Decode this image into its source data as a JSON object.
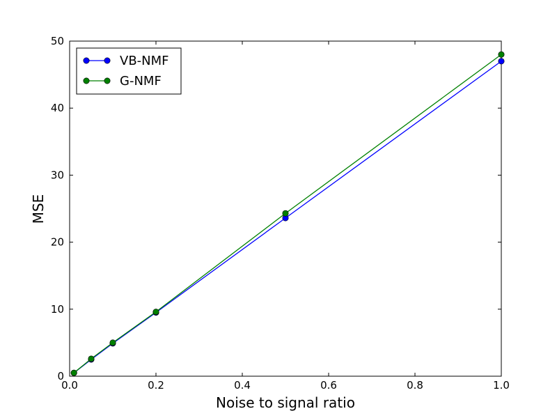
{
  "chart_data": {
    "type": "line",
    "title": "",
    "xlabel": "Noise to signal ratio",
    "ylabel": "MSE",
    "xlim": [
      0.0,
      1.0
    ],
    "ylim": [
      0,
      50
    ],
    "xticks": [
      0.0,
      0.2,
      0.4,
      0.6,
      0.8,
      1.0
    ],
    "xtick_labels": [
      "0.0",
      "0.2",
      "0.4",
      "0.6",
      "0.8",
      "1.0"
    ],
    "yticks": [
      0,
      10,
      20,
      30,
      40,
      50
    ],
    "ytick_labels": [
      "0",
      "10",
      "20",
      "30",
      "40",
      "50"
    ],
    "grid": false,
    "legend": {
      "position": "top-left"
    },
    "series": [
      {
        "name": "VB-NMF",
        "color": "#0000ff",
        "marker": "circle",
        "x": [
          0.01,
          0.05,
          0.1,
          0.2,
          0.5,
          1.0
        ],
        "y": [
          0.5,
          2.5,
          4.9,
          9.5,
          23.6,
          47.0
        ]
      },
      {
        "name": "G-NMF",
        "color": "#008000",
        "marker": "circle",
        "x": [
          0.01,
          0.05,
          0.1,
          0.2,
          0.5,
          1.0
        ],
        "y": [
          0.5,
          2.6,
          5.0,
          9.6,
          24.3,
          48.0
        ]
      }
    ]
  }
}
